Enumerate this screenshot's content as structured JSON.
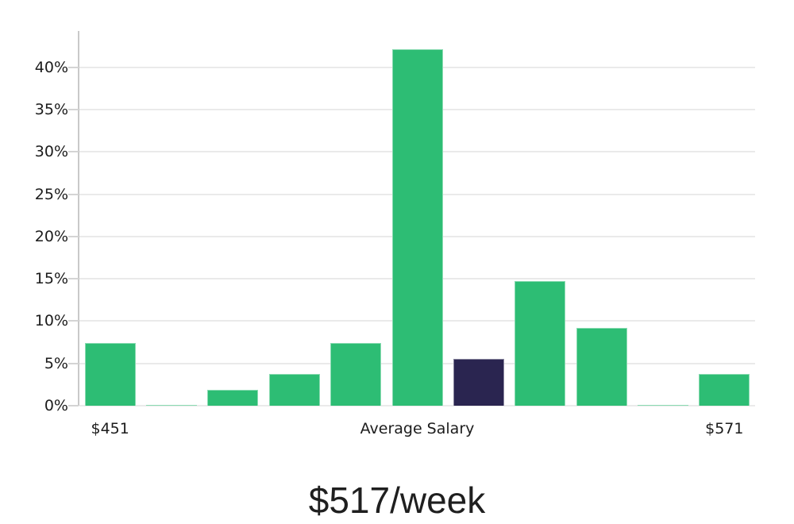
{
  "chart_data": {
    "type": "bar",
    "title": "$517/week",
    "values": [
      7.4,
      0.1,
      1.9,
      3.8,
      7.4,
      42.1,
      5.5,
      14.7,
      9.2,
      0.1,
      3.8
    ],
    "highlight_index": 6,
    "y_ticks": [
      {
        "value": 0,
        "label": "0%"
      },
      {
        "value": 5,
        "label": "5%"
      },
      {
        "value": 10,
        "label": "10%"
      },
      {
        "value": 15,
        "label": "15%"
      },
      {
        "value": 20,
        "label": "20%"
      },
      {
        "value": 25,
        "label": "25%"
      },
      {
        "value": 30,
        "label": "30%"
      },
      {
        "value": 35,
        "label": "35%"
      },
      {
        "value": 40,
        "label": "40%"
      }
    ],
    "ylim": [
      0,
      44.3
    ],
    "x_axis_labels": [
      {
        "text": "$451",
        "anchor": "bar-0"
      },
      {
        "text": "Average Salary",
        "anchor": "plot-center"
      },
      {
        "text": "$571",
        "anchor": "bar-10"
      }
    ],
    "grid": true,
    "legend": false,
    "colors": {
      "bar": "#2dbd74",
      "highlight_bar": "#2a2550",
      "gridline": "#eaeaea",
      "axis_line": "#c9c9c9",
      "tick_mark": "#d4d4d4",
      "label_text": "#1c1c1c",
      "title_text": "#1f1f1f"
    }
  }
}
